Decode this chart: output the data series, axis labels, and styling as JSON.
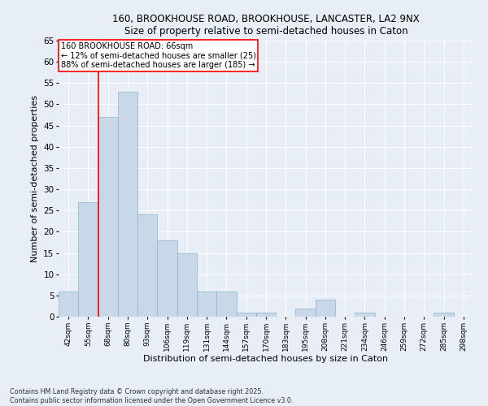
{
  "title": "160, BROOKHOUSE ROAD, BROOKHOUSE, LANCASTER, LA2 9NX",
  "subtitle": "Size of property relative to semi-detached houses in Caton",
  "xlabel": "Distribution of semi-detached houses by size in Caton",
  "ylabel": "Number of semi-detached properties",
  "bar_color": "#c8d8e8",
  "bar_edge_color": "#8ab4cc",
  "background_color": "#e8eef6",
  "grid_color": "#ffffff",
  "categories": [
    "42sqm",
    "55sqm",
    "68sqm",
    "80sqm",
    "93sqm",
    "106sqm",
    "119sqm",
    "131sqm",
    "144sqm",
    "157sqm",
    "170sqm",
    "183sqm",
    "195sqm",
    "208sqm",
    "221sqm",
    "234sqm",
    "246sqm",
    "259sqm",
    "272sqm",
    "285sqm",
    "298sqm"
  ],
  "values": [
    6,
    27,
    47,
    53,
    24,
    18,
    15,
    6,
    6,
    1,
    1,
    0,
    2,
    4,
    0,
    1,
    0,
    0,
    0,
    1,
    0
  ],
  "ylim": [
    0,
    65
  ],
  "yticks": [
    0,
    5,
    10,
    15,
    20,
    25,
    30,
    35,
    40,
    45,
    50,
    55,
    60,
    65
  ],
  "property_line_x": 1.5,
  "annotation_line": "160 BROOKHOUSE ROAD: 66sqm",
  "annotation_smaller": "← 12% of semi-detached houses are smaller (25)",
  "annotation_larger": "88% of semi-detached houses are larger (185) →",
  "footer1": "Contains HM Land Registry data © Crown copyright and database right 2025.",
  "footer2": "Contains public sector information licensed under the Open Government Licence v3.0."
}
